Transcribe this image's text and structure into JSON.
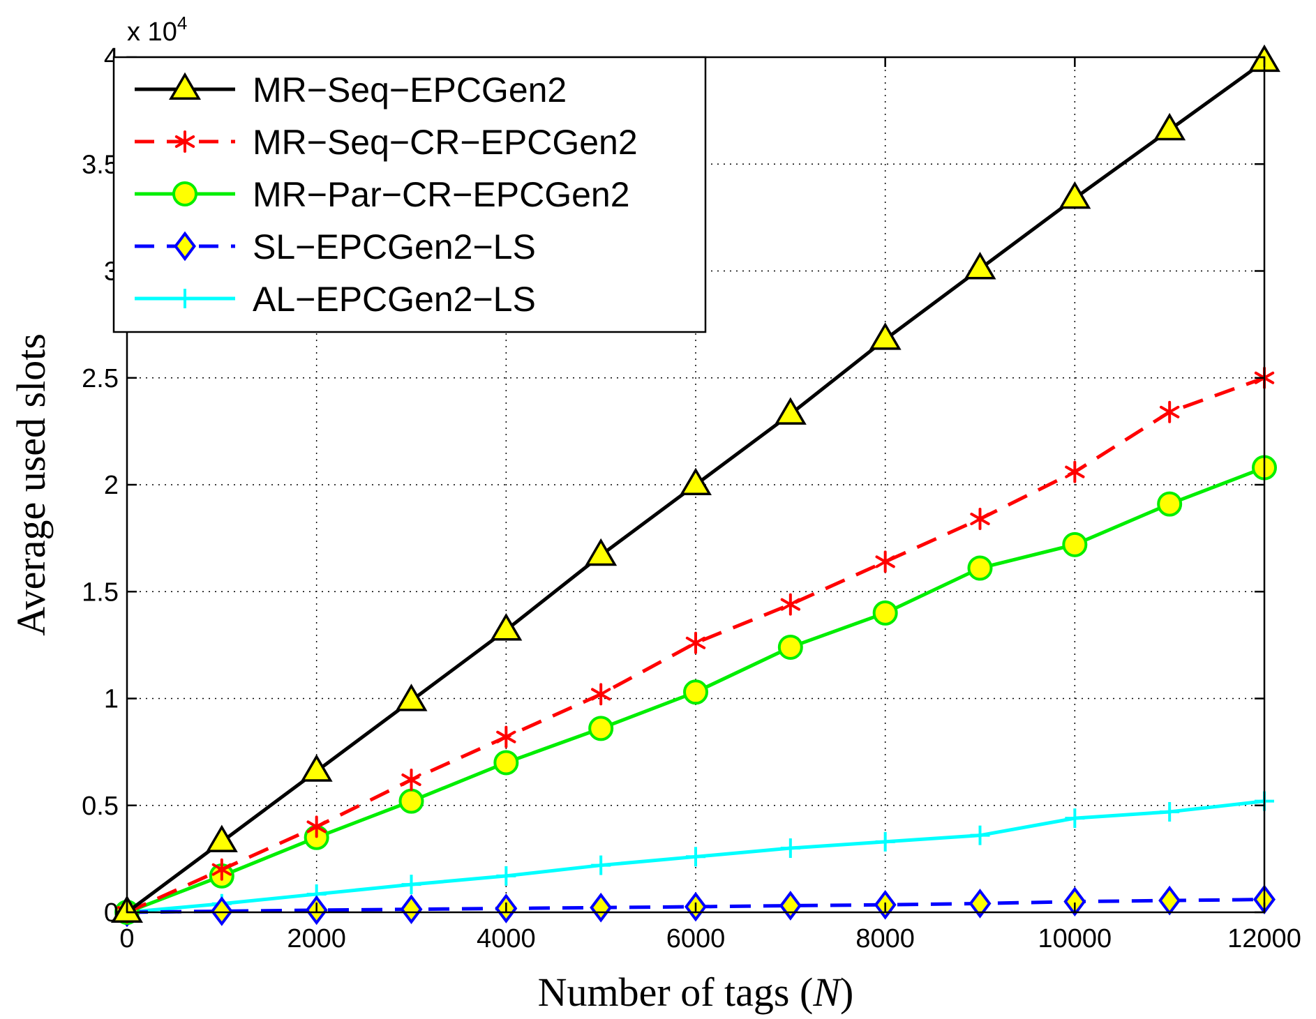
{
  "chart_data": {
    "type": "line",
    "title": "",
    "xlabel": "Number of tags",
    "xlabel_var": "N",
    "ylabel": "Average used slots",
    "y_multiplier_base": "x 10",
    "y_multiplier_exp": "4",
    "xlim": [
      0,
      12000
    ],
    "ylim": [
      0,
      4
    ],
    "grid": true,
    "legend_position": "top-left",
    "x": [
      0,
      1000,
      2000,
      3000,
      4000,
      5000,
      6000,
      7000,
      8000,
      9000,
      10000,
      11000,
      12000
    ],
    "x_ticks": [
      0,
      2000,
      4000,
      6000,
      8000,
      10000,
      12000
    ],
    "x_tick_labels": [
      "0",
      "2000",
      "4000",
      "6000",
      "8000",
      "10000",
      "12000"
    ],
    "y_ticks": [
      0,
      0.5,
      1,
      1.5,
      2,
      2.5,
      3,
      3.5,
      4
    ],
    "y_tick_labels": [
      "0",
      "0.5",
      "1",
      "1.5",
      "2",
      "2.5",
      "3",
      "3.5",
      "4"
    ],
    "series": [
      {
        "name": "MR−Seq−EPCGen2",
        "color": "#000000",
        "marker_fill": "#ffff00",
        "marker": "triangle",
        "dash": "solid",
        "values": [
          0,
          0.33,
          0.66,
          0.99,
          1.32,
          1.67,
          2.0,
          2.33,
          2.68,
          3.01,
          3.34,
          3.66,
          3.98
        ]
      },
      {
        "name": "MR−Seq−CR−EPCGen2",
        "color": "#ff0000",
        "marker_fill": "#ff0000",
        "marker": "asterisk",
        "dash": "dashed",
        "values": [
          0,
          0.2,
          0.4,
          0.62,
          0.82,
          1.02,
          1.26,
          1.44,
          1.64,
          1.84,
          2.06,
          2.34,
          2.5
        ]
      },
      {
        "name": "MR−Par−CR−EPCGen2",
        "color": "#00ee00",
        "marker_fill": "#ffff00",
        "marker": "circle",
        "dash": "solid",
        "values": [
          0,
          0.17,
          0.35,
          0.52,
          0.7,
          0.86,
          1.03,
          1.24,
          1.4,
          1.61,
          1.72,
          1.91,
          2.08
        ]
      },
      {
        "name": "SL−EPCGen2−LS",
        "color": "#0000ff",
        "marker_fill": "#ffff00",
        "marker": "diamond",
        "dash": "dashed",
        "values": [
          0,
          0.005,
          0.01,
          0.014,
          0.018,
          0.022,
          0.026,
          0.031,
          0.035,
          0.041,
          0.05,
          0.055,
          0.06
        ]
      },
      {
        "name": "AL−EPCGen2−LS",
        "color": "#00ffff",
        "marker_fill": "#00ffff",
        "marker": "plus",
        "dash": "solid",
        "values": [
          0,
          0.04,
          0.085,
          0.13,
          0.17,
          0.22,
          0.26,
          0.3,
          0.33,
          0.36,
          0.44,
          0.47,
          0.52
        ]
      }
    ]
  }
}
